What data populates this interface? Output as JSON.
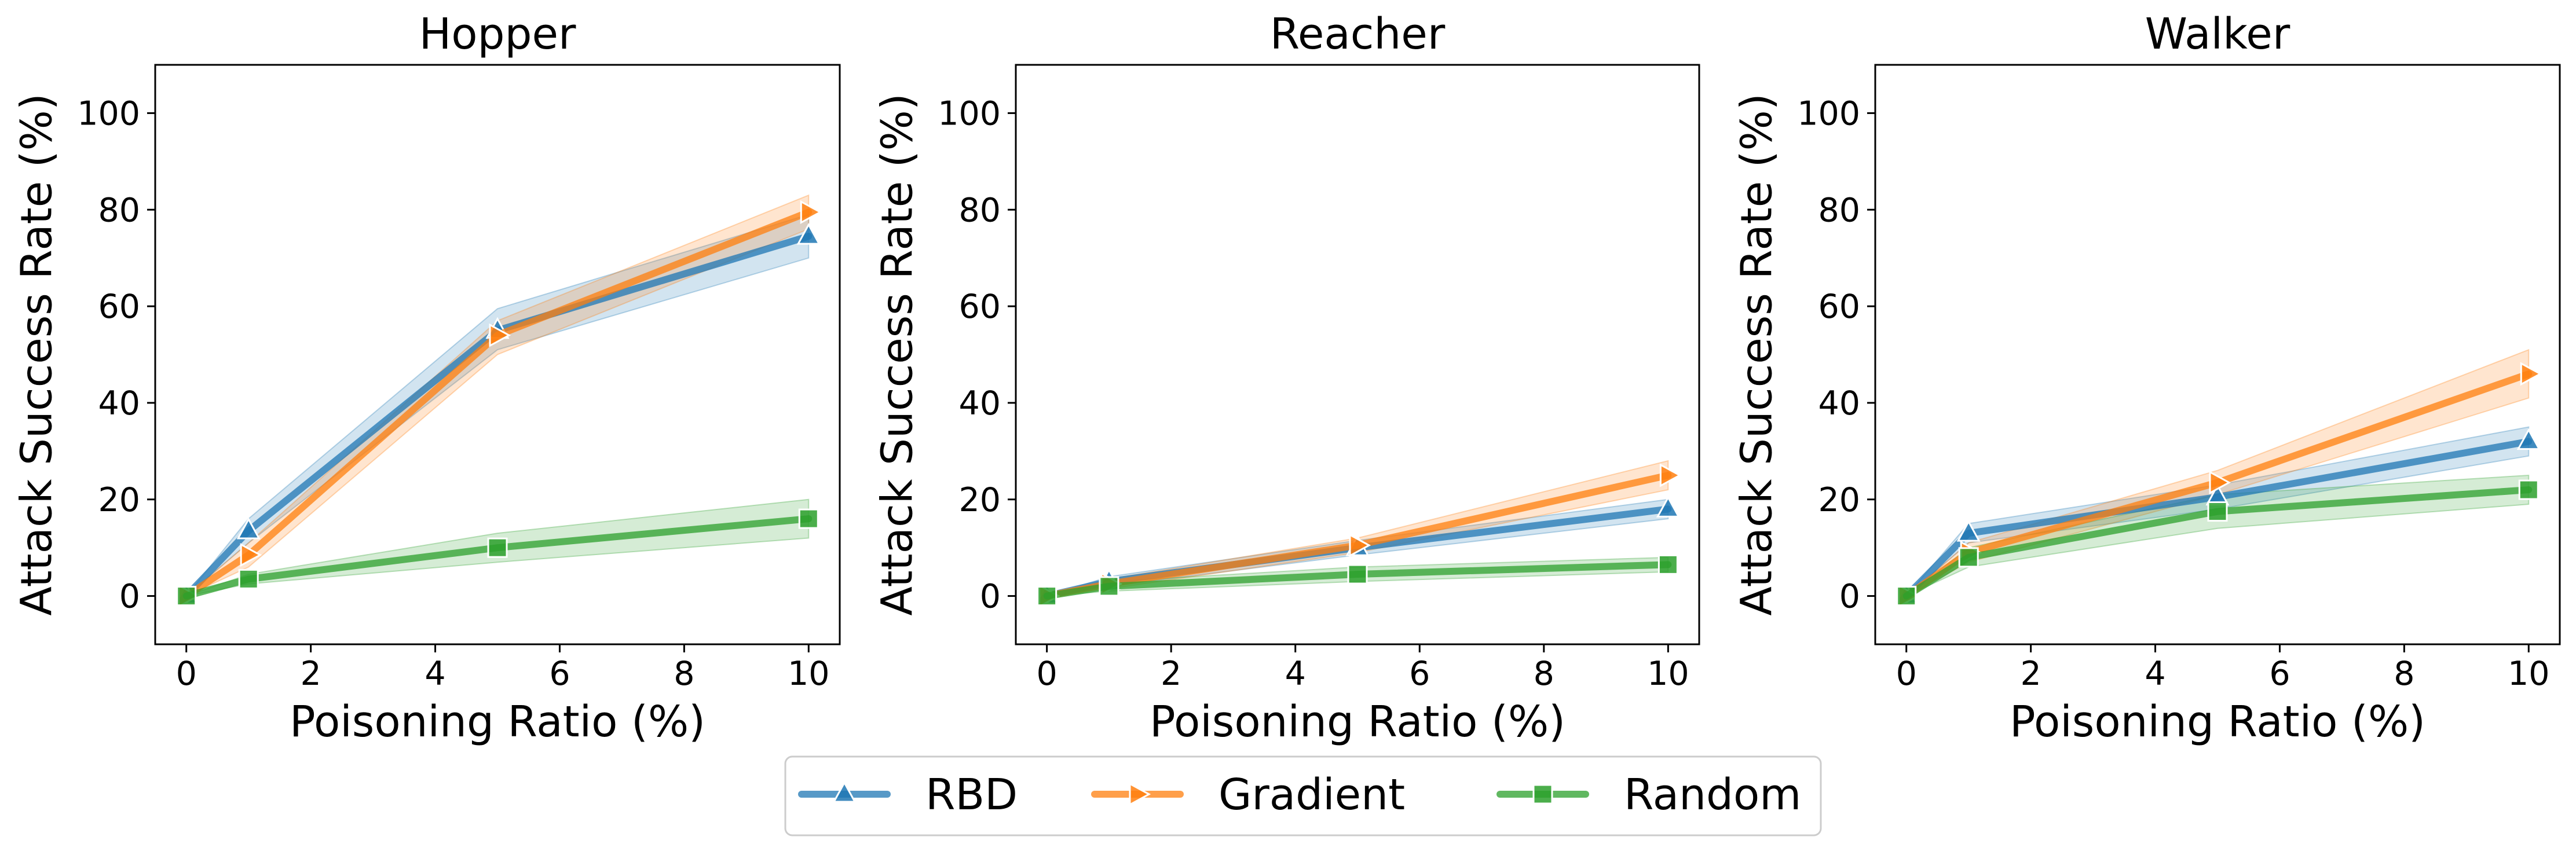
{
  "chart_data": [
    {
      "type": "line",
      "title": "Hopper",
      "xlabel": "Poisoning Ratio (%)",
      "ylabel": "Attack Success Rate (%)",
      "x": [
        0,
        1,
        5,
        10
      ],
      "xlim": [
        -0.5,
        10.5
      ],
      "ylim": [
        -10,
        110
      ],
      "xticks": [
        0,
        2,
        4,
        6,
        8,
        10
      ],
      "yticks": [
        0,
        20,
        40,
        60,
        80,
        100
      ],
      "series": [
        {
          "name": "RBD",
          "values": [
            0,
            13.5,
            55,
            74.5
          ],
          "lower": [
            0,
            11,
            51,
            70
          ],
          "upper": [
            0,
            16,
            59.5,
            79
          ]
        },
        {
          "name": "Gradient",
          "values": [
            0,
            8.5,
            54,
            79.5
          ],
          "lower": [
            0,
            6,
            50,
            76
          ],
          "upper": [
            0,
            11,
            57,
            83
          ]
        },
        {
          "name": "Random",
          "values": [
            0,
            3.5,
            10,
            16
          ],
          "lower": [
            0,
            2.5,
            7,
            12
          ],
          "upper": [
            0,
            4.5,
            13,
            20
          ]
        }
      ]
    },
    {
      "type": "line",
      "title": "Reacher",
      "xlabel": "Poisoning Ratio (%)",
      "ylabel": "Attack Success Rate (%)",
      "x": [
        0,
        1,
        5,
        10
      ],
      "xlim": [
        -0.5,
        10.5
      ],
      "ylim": [
        -10,
        110
      ],
      "xticks": [
        0,
        2,
        4,
        6,
        8,
        10
      ],
      "yticks": [
        0,
        20,
        40,
        60,
        80,
        100
      ],
      "series": [
        {
          "name": "RBD",
          "values": [
            0,
            3,
            10,
            18
          ],
          "lower": [
            0,
            2,
            8.5,
            16
          ],
          "upper": [
            0,
            4,
            11.5,
            20
          ]
        },
        {
          "name": "Gradient",
          "values": [
            0,
            2.5,
            10.5,
            25
          ],
          "lower": [
            0,
            1.5,
            9,
            22
          ],
          "upper": [
            0,
            3.5,
            12,
            28
          ]
        },
        {
          "name": "Random",
          "values": [
            0,
            2,
            4.5,
            6.5
          ],
          "lower": [
            0,
            1,
            3,
            5
          ],
          "upper": [
            0,
            3,
            6,
            8
          ]
        }
      ]
    },
    {
      "type": "line",
      "title": "Walker",
      "xlabel": "Poisoning Ratio (%)",
      "ylabel": "Attack Success Rate (%)",
      "x": [
        0,
        1,
        5,
        10
      ],
      "xlim": [
        -0.5,
        10.5
      ],
      "ylim": [
        -10,
        110
      ],
      "xticks": [
        0,
        2,
        4,
        6,
        8,
        10
      ],
      "yticks": [
        0,
        20,
        40,
        60,
        80,
        100
      ],
      "series": [
        {
          "name": "RBD",
          "values": [
            0,
            13,
            20.5,
            32
          ],
          "lower": [
            0,
            11,
            18,
            29
          ],
          "upper": [
            0,
            15,
            23,
            35
          ]
        },
        {
          "name": "Gradient",
          "values": [
            0,
            9,
            23.5,
            46
          ],
          "lower": [
            0,
            7,
            21,
            41
          ],
          "upper": [
            0,
            11,
            26,
            51
          ]
        },
        {
          "name": "Random",
          "values": [
            0,
            8,
            17.5,
            22
          ],
          "lower": [
            0,
            6,
            14,
            19
          ],
          "upper": [
            0,
            10,
            21,
            25
          ]
        }
      ]
    }
  ],
  "legend": {
    "placement": "bottom-center",
    "items": [
      "RBD",
      "Gradient",
      "Random"
    ]
  },
  "colors": {
    "RBD": "#1f77b4",
    "Gradient": "#ff7f0e",
    "Random": "#2ca02c"
  },
  "markers": {
    "RBD": "triangle-up",
    "Gradient": "triangle-right",
    "Random": "square"
  }
}
